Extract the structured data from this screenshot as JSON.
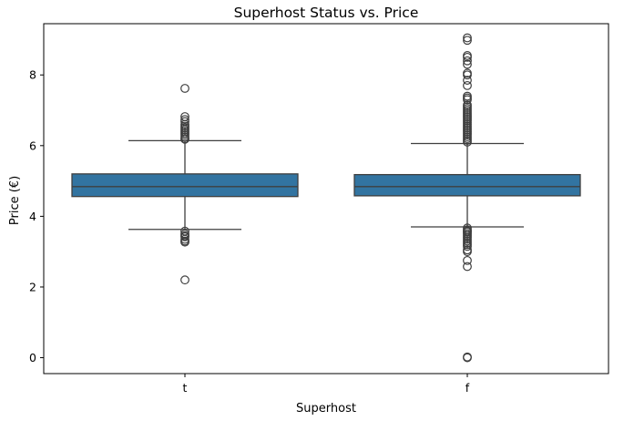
{
  "chart_data": {
    "type": "box",
    "title": "Superhost Status vs. Price",
    "xlabel": "Superhost",
    "ylabel": "Price (€)",
    "ylim": [
      -0.45,
      9.45
    ],
    "yticks": [
      0,
      2,
      4,
      6,
      8
    ],
    "grid": false,
    "legend": "none",
    "box_color": "#3274a1",
    "categories": [
      "t",
      "f"
    ],
    "boxes": [
      {
        "category": "t",
        "whisker_low": 3.63,
        "q1": 4.56,
        "median": 4.84,
        "q3": 5.2,
        "whisker_high": 6.14,
        "outliers": [
          7.62,
          6.82,
          6.74,
          6.68,
          6.6,
          6.55,
          6.5,
          6.45,
          6.4,
          6.35,
          6.3,
          6.25,
          6.2,
          6.18,
          3.58,
          3.5,
          3.45,
          3.42,
          3.35,
          3.3,
          3.27,
          2.2
        ]
      },
      {
        "category": "f",
        "whisker_low": 3.7,
        "q1": 4.58,
        "median": 4.84,
        "q3": 5.18,
        "whisker_high": 6.06,
        "outliers": [
          9.05,
          8.98,
          8.55,
          8.5,
          8.4,
          8.3,
          8.05,
          8.0,
          7.85,
          7.7,
          7.4,
          7.35,
          7.3,
          7.15,
          7.1,
          7.05,
          7.0,
          6.95,
          6.9,
          6.85,
          6.8,
          6.75,
          6.7,
          6.65,
          6.6,
          6.55,
          6.5,
          6.45,
          6.4,
          6.35,
          6.3,
          6.25,
          6.2,
          6.15,
          6.1,
          3.67,
          3.62,
          3.58,
          3.55,
          3.5,
          3.45,
          3.4,
          3.35,
          3.3,
          3.25,
          3.2,
          3.15,
          3.05,
          3.0,
          2.75,
          2.58,
          0.02,
          0.0
        ]
      }
    ]
  }
}
